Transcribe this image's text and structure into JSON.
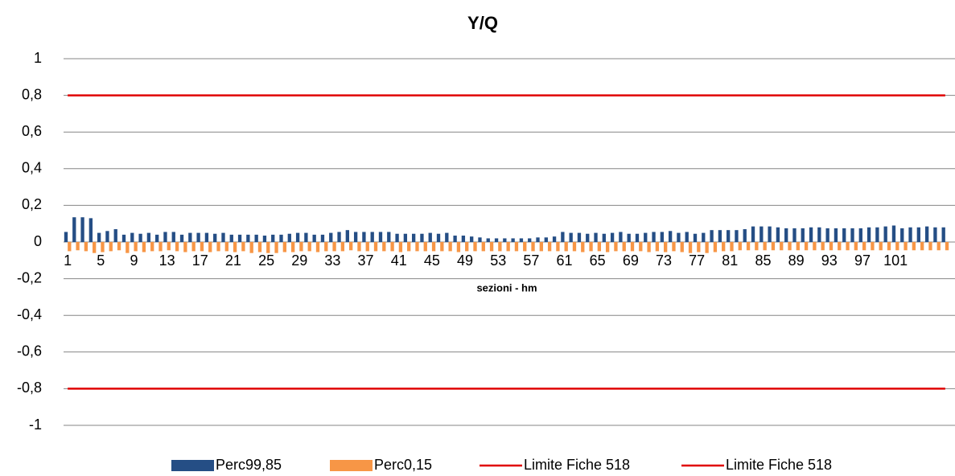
{
  "chart_data": {
    "type": "bar",
    "title": "Y/Q",
    "x_label": "sezioni - hm",
    "categories": [
      1,
      null,
      null,
      null,
      5,
      null,
      null,
      null,
      9,
      null,
      null,
      null,
      13,
      null,
      null,
      null,
      17,
      null,
      null,
      null,
      21,
      null,
      null,
      null,
      25,
      null,
      null,
      null,
      29,
      null,
      null,
      null,
      33,
      null,
      null,
      null,
      37,
      null,
      null,
      null,
      41,
      null,
      null,
      null,
      45,
      null,
      null,
      null,
      49,
      null,
      null,
      null,
      53,
      null,
      null,
      null,
      57,
      null,
      null,
      null,
      61,
      null,
      null,
      null,
      65,
      null,
      null,
      null,
      69,
      null,
      null,
      null,
      73,
      null,
      null,
      null,
      77,
      null,
      null,
      null,
      81,
      null,
      null,
      null,
      85,
      null,
      null,
      null,
      89,
      null,
      null,
      null,
      93,
      null,
      null,
      null,
      97,
      null,
      null,
      null,
      101,
      null,
      null,
      null,
      null,
      null,
      null
    ],
    "series": [
      {
        "name": "Perc99,85",
        "type": "bar",
        "color": "#254e85",
        "values": [
          0.055,
          0.135,
          0.135,
          0.13,
          0.05,
          0.06,
          0.07,
          0.04,
          0.05,
          0.045,
          0.05,
          0.04,
          0.055,
          0.055,
          0.04,
          0.05,
          0.05,
          0.05,
          0.045,
          0.05,
          0.04,
          0.04,
          0.04,
          0.04,
          0.035,
          0.04,
          0.04,
          0.045,
          0.05,
          0.05,
          0.04,
          0.04,
          0.05,
          0.055,
          0.065,
          0.055,
          0.055,
          0.055,
          0.055,
          0.055,
          0.045,
          0.045,
          0.045,
          0.045,
          0.05,
          0.045,
          0.05,
          0.035,
          0.035,
          0.03,
          0.025,
          0.02,
          0.02,
          0.02,
          0.02,
          0.02,
          0.02,
          0.025,
          0.025,
          0.03,
          0.055,
          0.05,
          0.05,
          0.045,
          0.05,
          0.045,
          0.05,
          0.055,
          0.045,
          0.045,
          0.05,
          0.055,
          0.055,
          0.06,
          0.05,
          0.055,
          0.045,
          0.05,
          0.065,
          0.065,
          0.065,
          0.065,
          0.07,
          0.085,
          0.085,
          0.085,
          0.08,
          0.075,
          0.075,
          0.075,
          0.08,
          0.08,
          0.075,
          0.075,
          0.075,
          0.075,
          0.075,
          0.08,
          0.08,
          0.085,
          0.09,
          0.075,
          0.08,
          0.08,
          0.085,
          0.08,
          0.08
        ]
      },
      {
        "name": "Perc0,15",
        "type": "bar",
        "color": "#f79646",
        "values": [
          -0.05,
          -0.045,
          -0.05,
          -0.06,
          -0.055,
          -0.05,
          -0.045,
          -0.06,
          -0.05,
          -0.055,
          -0.05,
          -0.05,
          -0.045,
          -0.05,
          -0.055,
          -0.05,
          -0.05,
          -0.055,
          -0.05,
          -0.05,
          -0.055,
          -0.05,
          -0.06,
          -0.055,
          -0.06,
          -0.06,
          -0.055,
          -0.055,
          -0.05,
          -0.05,
          -0.055,
          -0.05,
          -0.05,
          -0.05,
          -0.045,
          -0.05,
          -0.05,
          -0.05,
          -0.05,
          -0.05,
          -0.055,
          -0.05,
          -0.05,
          -0.05,
          -0.05,
          -0.05,
          -0.05,
          -0.055,
          -0.05,
          -0.05,
          -0.05,
          -0.05,
          -0.05,
          -0.05,
          -0.05,
          -0.05,
          -0.05,
          -0.05,
          -0.05,
          -0.05,
          -0.05,
          -0.05,
          -0.055,
          -0.05,
          -0.05,
          -0.055,
          -0.05,
          -0.05,
          -0.05,
          -0.05,
          -0.055,
          -0.05,
          -0.055,
          -0.05,
          -0.055,
          -0.06,
          -0.055,
          -0.06,
          -0.055,
          -0.05,
          -0.05,
          -0.045,
          -0.045,
          -0.045,
          -0.045,
          -0.045,
          -0.045,
          -0.045,
          -0.045,
          -0.045,
          -0.045,
          -0.045,
          -0.045,
          -0.045,
          -0.045,
          -0.045,
          -0.045,
          -0.045,
          -0.045,
          -0.045,
          -0.045,
          -0.045,
          -0.045,
          -0.045,
          -0.045,
          -0.045,
          -0.045
        ]
      },
      {
        "name": "Limite Fiche 518",
        "type": "line",
        "color": "#e00000",
        "values": [
          0.8,
          0.8,
          0.8,
          0.8,
          0.8,
          0.8,
          0.8,
          0.8,
          0.8,
          0.8,
          0.8,
          0.8,
          0.8,
          0.8,
          0.8,
          0.8,
          0.8,
          0.8,
          0.8,
          0.8,
          0.8,
          0.8,
          0.8,
          0.8,
          0.8,
          0.8,
          0.8,
          0.8,
          0.8,
          0.8,
          0.8,
          0.8,
          0.8,
          0.8,
          0.8,
          0.8,
          0.8,
          0.8,
          0.8,
          0.8,
          0.8,
          0.8,
          0.8,
          0.8,
          0.8,
          0.8,
          0.8,
          0.8,
          0.8,
          0.8,
          0.8,
          0.8,
          0.8,
          0.8,
          0.8,
          0.8,
          0.8,
          0.8,
          0.8,
          0.8,
          0.8,
          0.8,
          0.8,
          0.8,
          0.8,
          0.8,
          0.8,
          0.8,
          0.8,
          0.8,
          0.8,
          0.8,
          0.8,
          0.8,
          0.8,
          0.8,
          0.8,
          0.8,
          0.8,
          0.8,
          0.8,
          0.8,
          0.8,
          0.8,
          0.8,
          0.8,
          0.8,
          0.8,
          0.8,
          0.8,
          0.8,
          0.8,
          0.8,
          0.8,
          0.8,
          0.8,
          0.8,
          0.8,
          0.8,
          0.8,
          0.8,
          0.8,
          0.8,
          0.8,
          0.8,
          0.8,
          0.8
        ]
      },
      {
        "name": "Limite Fiche 518",
        "type": "line",
        "color": "#e00000",
        "values": [
          -0.8,
          -0.8,
          -0.8,
          -0.8,
          -0.8,
          -0.8,
          -0.8,
          -0.8,
          -0.8,
          -0.8,
          -0.8,
          -0.8,
          -0.8,
          -0.8,
          -0.8,
          -0.8,
          -0.8,
          -0.8,
          -0.8,
          -0.8,
          -0.8,
          -0.8,
          -0.8,
          -0.8,
          -0.8,
          -0.8,
          -0.8,
          -0.8,
          -0.8,
          -0.8,
          -0.8,
          -0.8,
          -0.8,
          -0.8,
          -0.8,
          -0.8,
          -0.8,
          -0.8,
          -0.8,
          -0.8,
          -0.8,
          -0.8,
          -0.8,
          -0.8,
          -0.8,
          -0.8,
          -0.8,
          -0.8,
          -0.8,
          -0.8,
          -0.8,
          -0.8,
          -0.8,
          -0.8,
          -0.8,
          -0.8,
          -0.8,
          -0.8,
          -0.8,
          -0.8,
          -0.8,
          -0.8,
          -0.8,
          -0.8,
          -0.8,
          -0.8,
          -0.8,
          -0.8,
          -0.8,
          -0.8,
          -0.8,
          -0.8,
          -0.8,
          -0.8,
          -0.8,
          -0.8,
          -0.8,
          -0.8,
          -0.8,
          -0.8,
          -0.8,
          -0.8,
          -0.8,
          -0.8,
          -0.8,
          -0.8,
          -0.8,
          -0.8,
          -0.8,
          -0.8,
          -0.8,
          -0.8,
          -0.8,
          -0.8,
          -0.8,
          -0.8,
          -0.8,
          -0.8,
          -0.8,
          -0.8,
          -0.8,
          -0.8,
          -0.8,
          -0.8,
          -0.8,
          -0.8,
          -0.8
        ]
      }
    ],
    "ylim": [
      -1,
      1
    ],
    "yticks": [
      -1,
      {
        "value": -0.8,
        "label": "-0,8"
      },
      {
        "value": -0.6,
        "label": "-0,6"
      },
      {
        "value": -0.4,
        "label": "-0,4"
      },
      {
        "value": -0.2,
        "label": "-0,2"
      },
      0,
      {
        "value": 0.2,
        "label": "0,2"
      },
      {
        "value": 0.4,
        "label": "0,4"
      },
      {
        "value": 0.6,
        "label": "0,6"
      },
      {
        "value": 0.8,
        "label": "0,8"
      },
      1
    ],
    "grid": true
  }
}
